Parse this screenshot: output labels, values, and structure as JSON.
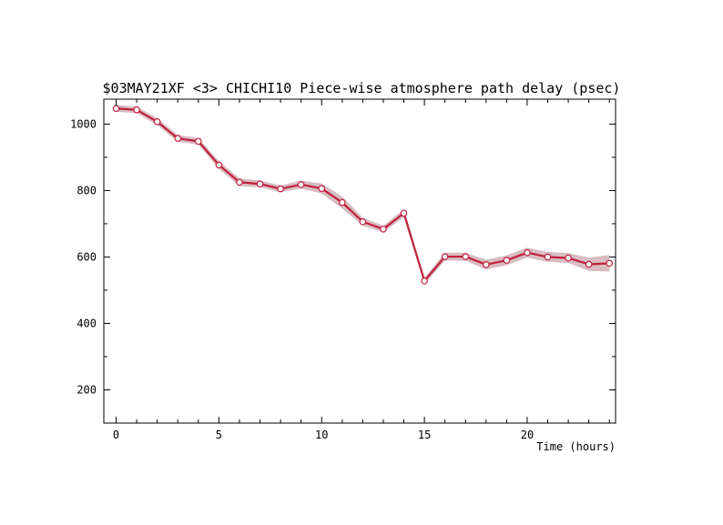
{
  "chart_data": {
    "type": "line",
    "title": "$03MAY21XF <3>  CHICHI10  Piece-wise atmosphere path delay (psec)",
    "xlabel": "Time (hours)",
    "ylabel": "",
    "xlim": [
      -0.6,
      24.3
    ],
    "ylim": [
      100,
      1075
    ],
    "x_ticks": [
      0,
      5,
      10,
      15,
      20
    ],
    "y_ticks": [
      200,
      400,
      600,
      800,
      1000
    ],
    "x_minor_step": 1,
    "y_minor_step": 100,
    "grid": false,
    "series": [
      {
        "color": "#c0213c",
        "band_color": "#d8bcc2",
        "band_halfwidth": [
          10,
          10,
          10,
          10,
          10,
          12,
          12,
          10,
          10,
          12,
          15,
          18,
          12,
          10,
          12,
          10,
          12,
          12,
          15,
          15,
          15,
          15,
          15,
          20,
          25
        ],
        "x": [
          0,
          1,
          2,
          3,
          4,
          5,
          6,
          7,
          8,
          9,
          10,
          11,
          12,
          13,
          14,
          15,
          16,
          17,
          18,
          19,
          20,
          21,
          22,
          23,
          24
        ],
        "y": [
          1047,
          1043,
          1007,
          957,
          948,
          877,
          825,
          820,
          805,
          818,
          806,
          764,
          706,
          684,
          732,
          528,
          601,
          601,
          577,
          590,
          613,
          600,
          597,
          578,
          581
        ]
      }
    ]
  },
  "colors": {
    "axis": "#000000",
    "marker_fill": "#ffffff"
  }
}
